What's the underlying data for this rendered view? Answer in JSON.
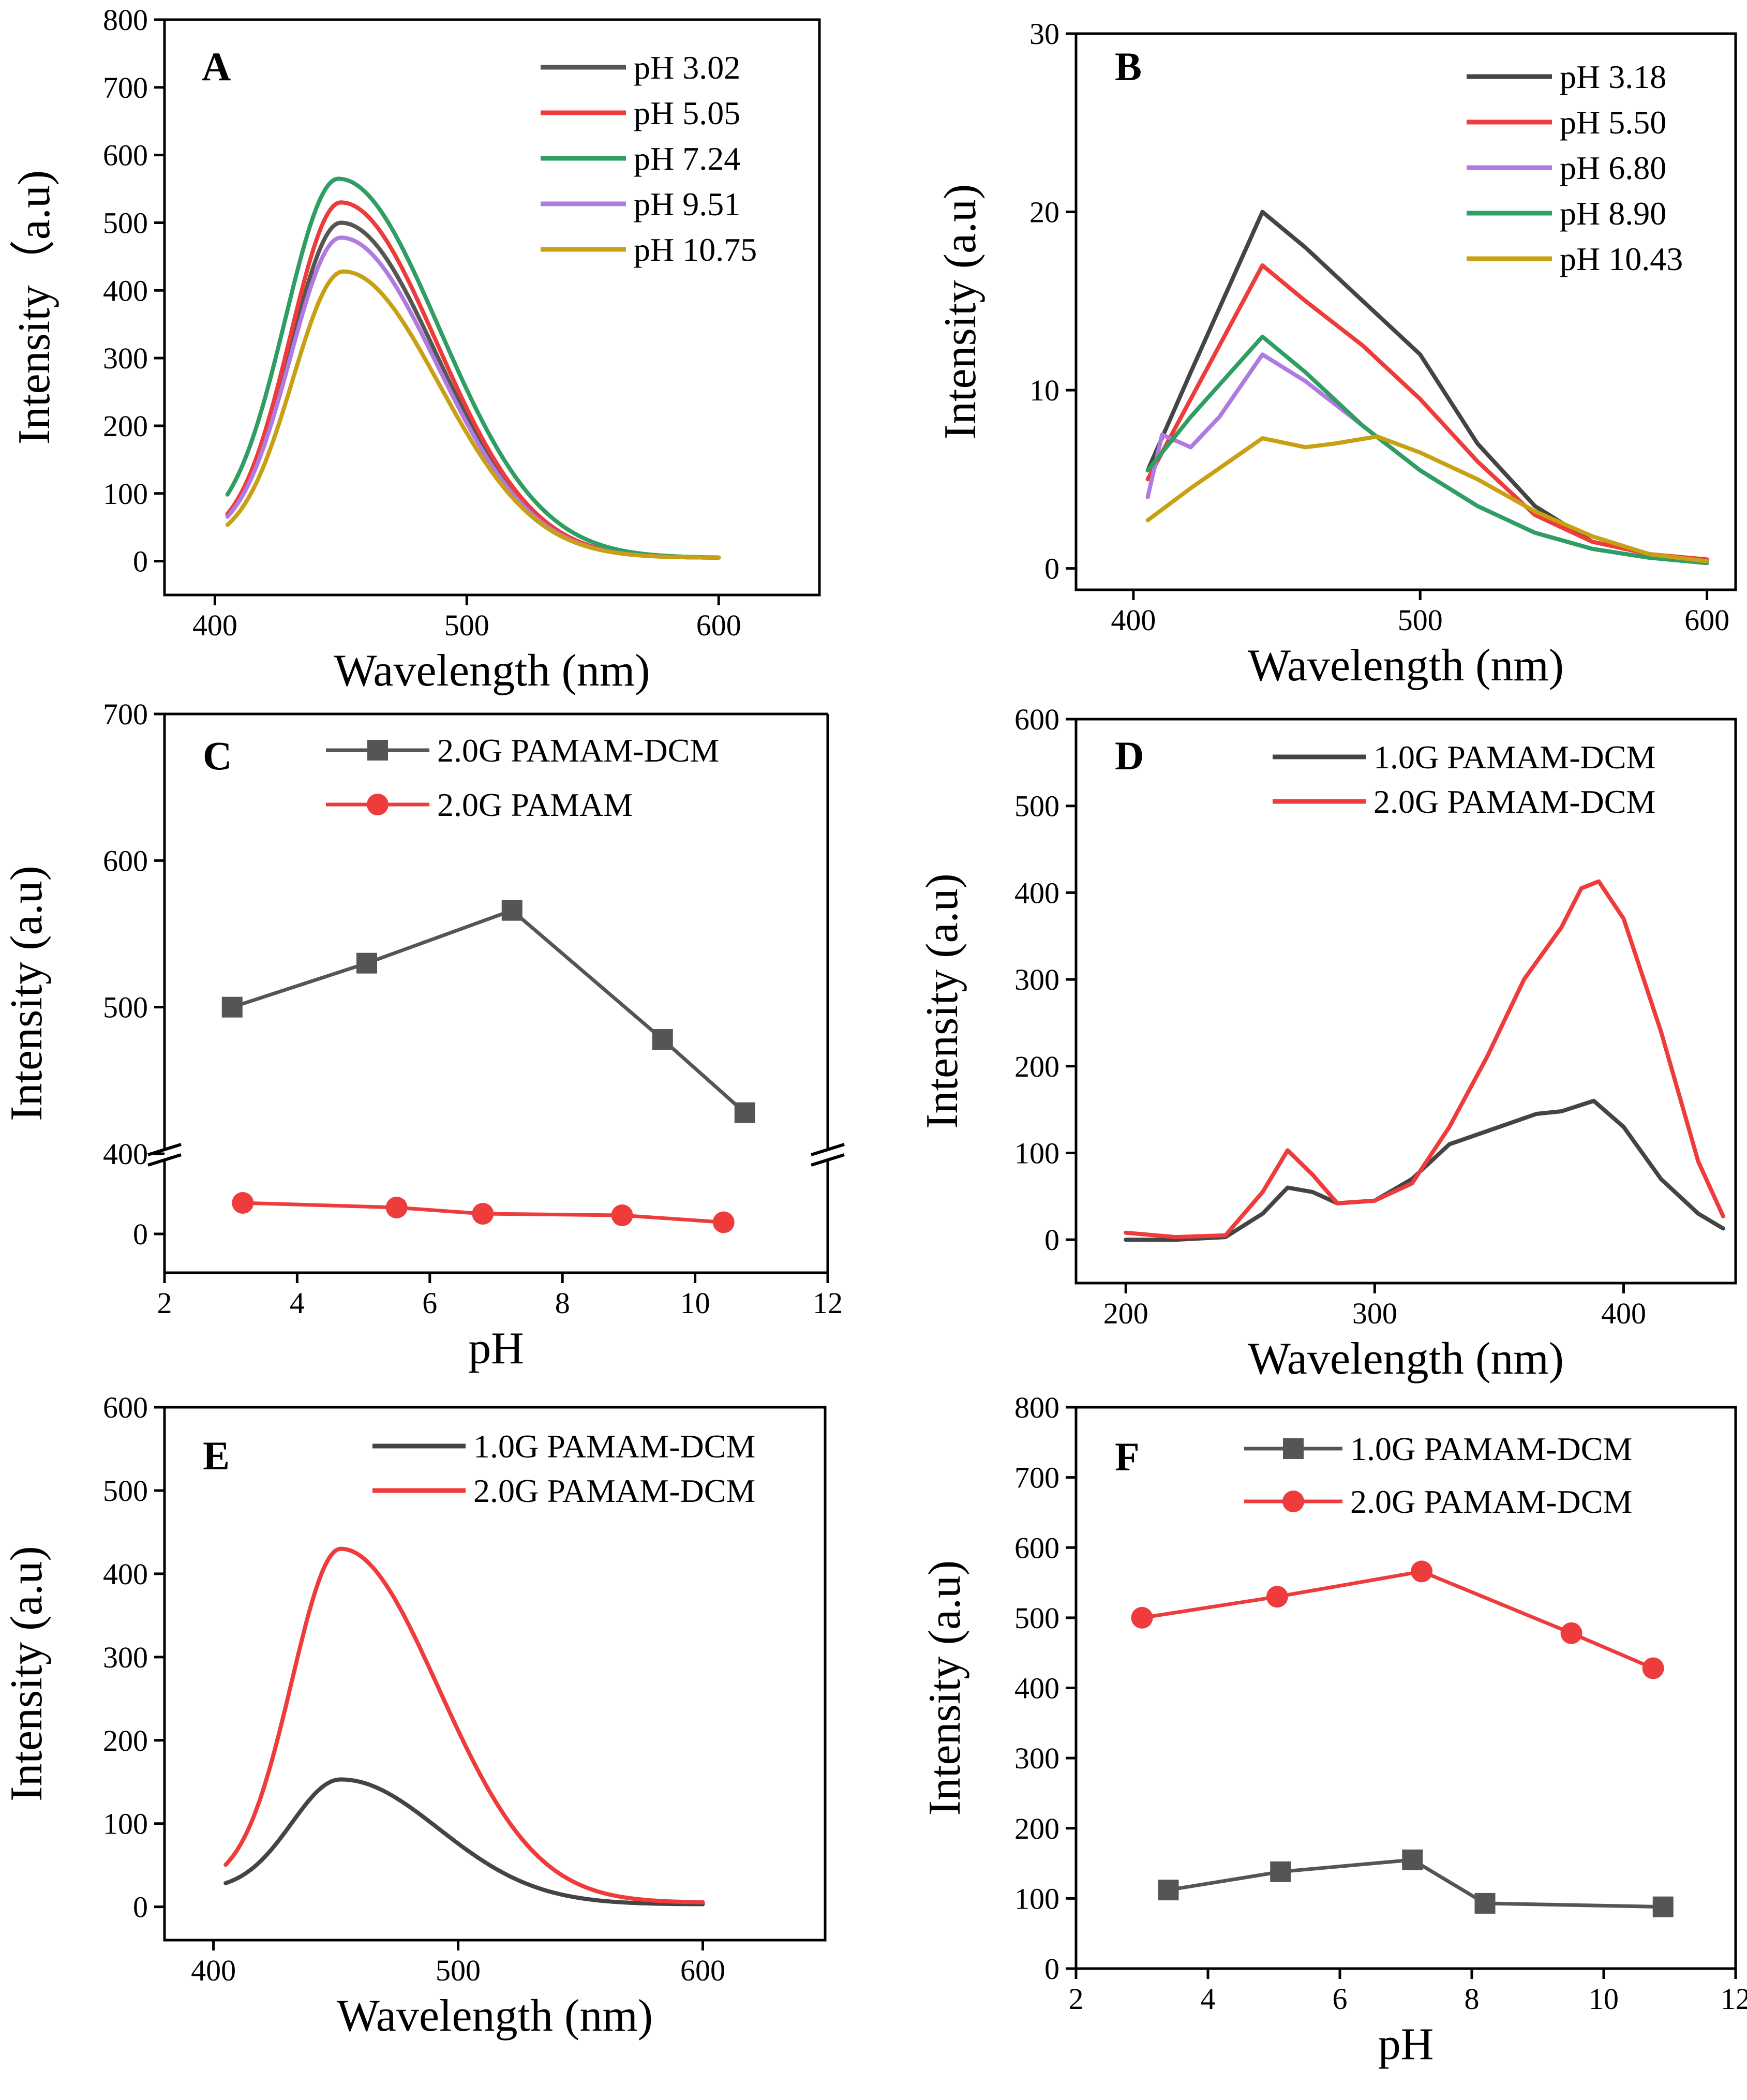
{
  "figure": {
    "panels": 6
  },
  "chart_data": [
    {
      "id": "A",
      "type": "line",
      "letter": "A",
      "xlabel": "Wavelength (nm)",
      "ylabel": "Intensity（a.u)",
      "xlim": [
        380,
        640
      ],
      "ylim": [
        -50,
        800
      ],
      "xticks": [
        400,
        500,
        600
      ],
      "yticks": [
        0,
        100,
        200,
        300,
        400,
        500,
        600,
        700,
        800
      ],
      "series": [
        {
          "name": "pH 3.02",
          "color": "#555555",
          "style": "peak",
          "x0": 405,
          "x1": 600,
          "peakX": 450,
          "peakY": 500,
          "startY": 30,
          "endY": 5,
          "wl": 20,
          "wr": 38
        },
        {
          "name": "pH 5.05",
          "color": "#ee3b3b",
          "style": "peak",
          "x0": 405,
          "x1": 600,
          "peakX": 450,
          "peakY": 530,
          "startY": 30,
          "endY": 5,
          "wl": 20,
          "wr": 38
        },
        {
          "name": "pH 7.24",
          "color": "#2e9e62",
          "style": "peak",
          "x0": 405,
          "x1": 600,
          "peakX": 449,
          "peakY": 565,
          "startY": 40,
          "endY": 5,
          "wl": 21,
          "wr": 40
        },
        {
          "name": "pH 9.51",
          "color": "#b07ae0",
          "style": "peak",
          "x0": 405,
          "x1": 600,
          "peakX": 450,
          "peakY": 478,
          "startY": 30,
          "endY": 5,
          "wl": 20,
          "wr": 38
        },
        {
          "name": "pH 10.75",
          "color": "#c9a014",
          "style": "peak",
          "x0": 405,
          "x1": 600,
          "peakX": 451,
          "peakY": 428,
          "startY": 25,
          "endY": 5,
          "wl": 20,
          "wr": 38
        }
      ]
    },
    {
      "id": "B",
      "type": "line",
      "letter": "B",
      "xlabel": "Wavelength (nm)",
      "ylabel": "Intensity (a.u)",
      "xlim": [
        380,
        610
      ],
      "ylim": [
        -1.2,
        30
      ],
      "xticks": [
        400,
        500,
        600
      ],
      "yticks": [
        0,
        10,
        20,
        30
      ],
      "series": [
        {
          "name": "pH 3.18",
          "color": "#444444",
          "style": "poly",
          "x": [
            405,
            420,
            445,
            460,
            480,
            500,
            520,
            540,
            560,
            580,
            600
          ],
          "y": [
            5.5,
            11,
            20,
            18,
            15,
            12,
            7,
            3.5,
            1.5,
            0.8,
            0.4
          ]
        },
        {
          "name": "pH 5.50",
          "color": "#ee3b3b",
          "style": "poly",
          "x": [
            405,
            420,
            445,
            460,
            480,
            500,
            520,
            540,
            560,
            580,
            600
          ],
          "y": [
            5,
            9.5,
            17,
            15,
            12.5,
            9.5,
            6,
            3,
            1.5,
            0.8,
            0.5
          ]
        },
        {
          "name": "pH 6.80",
          "color": "#b07ae0",
          "style": "poly",
          "x": [
            405,
            410,
            420,
            430,
            445,
            460,
            480,
            500,
            520,
            540,
            560,
            580,
            600
          ],
          "y": [
            4,
            7.5,
            6.8,
            8.5,
            12,
            10.5,
            8,
            5.5,
            3.5,
            2,
            1.1,
            0.6,
            0.3
          ]
        },
        {
          "name": "pH 8.90",
          "color": "#2e9e62",
          "style": "poly",
          "x": [
            405,
            420,
            445,
            460,
            480,
            500,
            520,
            540,
            560,
            580,
            600
          ],
          "y": [
            5.5,
            8.5,
            13,
            11,
            8,
            5.5,
            3.5,
            2,
            1.1,
            0.6,
            0.3
          ]
        },
        {
          "name": "pH 10.43",
          "color": "#c9a014",
          "style": "poly",
          "x": [
            405,
            420,
            445,
            460,
            470,
            485,
            500,
            520,
            540,
            560,
            580,
            600
          ],
          "y": [
            2.7,
            4.5,
            7.3,
            6.8,
            7,
            7.4,
            6.5,
            5,
            3.2,
            1.8,
            0.8,
            0.4
          ]
        }
      ]
    },
    {
      "id": "C",
      "type": "line",
      "letter": "C",
      "xlabel": "pH",
      "ylabel": "Intensity (a.u)",
      "xlim": [
        2,
        12
      ],
      "xticks": [
        2,
        4,
        6,
        8,
        10,
        12
      ],
      "ylim_upper": [
        400,
        700
      ],
      "yticks_upper": [
        400,
        500,
        600,
        700
      ],
      "ylim_lower": [
        -25,
        45
      ],
      "yticks_lower": [
        0
      ],
      "series": [
        {
          "name": "2.0G PAMAM-DCM",
          "color": "#555555",
          "marker": "square",
          "segment": "upper",
          "x": [
            3.02,
            5.05,
            7.24,
            9.51,
            10.75
          ],
          "y": [
            500,
            530,
            566,
            478,
            428
          ]
        },
        {
          "name": "2.0G PAMAM",
          "color": "#ee3b3b",
          "marker": "circle",
          "segment": "lower",
          "x": [
            3.18,
            5.5,
            6.8,
            8.9,
            10.43
          ],
          "y": [
            20,
            17,
            13,
            12,
            7.5
          ]
        }
      ]
    },
    {
      "id": "D",
      "type": "line",
      "letter": "D",
      "xlabel": "Wavelength (nm)",
      "ylabel": "Intensity (a.u)",
      "xlim": [
        180,
        445
      ],
      "ylim": [
        -50,
        600
      ],
      "xticks": [
        200,
        300,
        400
      ],
      "yticks": [
        0,
        100,
        200,
        300,
        400,
        500,
        600
      ],
      "series": [
        {
          "name": "1.0G PAMAM-DCM",
          "color": "#444444",
          "style": "poly",
          "x": [
            200,
            220,
            240,
            255,
            265,
            275,
            285,
            300,
            315,
            330,
            350,
            365,
            375,
            388,
            400,
            415,
            430,
            440
          ],
          "y": [
            0,
            0,
            3,
            30,
            60,
            55,
            42,
            45,
            70,
            110,
            130,
            145,
            148,
            160,
            130,
            70,
            30,
            13
          ]
        },
        {
          "name": "2.0G PAMAM-DCM",
          "color": "#ee3b3b",
          "style": "poly",
          "x": [
            200,
            220,
            240,
            255,
            265,
            275,
            285,
            300,
            315,
            330,
            345,
            360,
            375,
            383,
            390,
            400,
            415,
            430,
            440
          ],
          "y": [
            8,
            3,
            5,
            55,
            103,
            75,
            42,
            45,
            65,
            130,
            210,
            300,
            360,
            405,
            413,
            370,
            240,
            90,
            27
          ]
        }
      ]
    },
    {
      "id": "E",
      "type": "line",
      "letter": "E",
      "xlabel": "Wavelength (nm)",
      "ylabel": "Intensity (a.u)",
      "xlim": [
        380,
        650
      ],
      "ylim": [
        -40,
        600
      ],
      "xticks": [
        400,
        500,
        600
      ],
      "yticks": [
        0,
        100,
        200,
        300,
        400,
        500,
        600
      ],
      "series": [
        {
          "name": "1.0G PAMAM-DCM",
          "color": "#444444",
          "style": "peak",
          "x0": 405,
          "x1": 600,
          "peakX": 452,
          "peakY": 153,
          "startY": 20,
          "endY": 3,
          "wl": 20,
          "wr": 40
        },
        {
          "name": "2.0G PAMAM-DCM",
          "color": "#ee3b3b",
          "style": "peak",
          "x0": 405,
          "x1": 600,
          "peakX": 452,
          "peakY": 430,
          "startY": 25,
          "endY": 5,
          "wl": 20,
          "wr": 40
        }
      ]
    },
    {
      "id": "F",
      "type": "line",
      "letter": "F",
      "xlabel": "pH",
      "ylabel": "Intensity (a.u)",
      "xlim": [
        2,
        12
      ],
      "ylim": [
        0,
        800
      ],
      "xticks": [
        2,
        4,
        6,
        8,
        10,
        12
      ],
      "yticks": [
        0,
        100,
        200,
        300,
        400,
        500,
        600,
        700,
        800
      ],
      "series": [
        {
          "name": "1.0G PAMAM-DCM",
          "color": "#555555",
          "marker": "square",
          "x": [
            3.4,
            5.1,
            7.1,
            8.2,
            10.9
          ],
          "y": [
            112,
            138,
            155,
            93,
            88
          ]
        },
        {
          "name": "2.0G PAMAM-DCM",
          "color": "#ee3b3b",
          "marker": "circle",
          "x": [
            3.0,
            5.05,
            7.24,
            9.51,
            10.75
          ],
          "y": [
            500,
            530,
            566,
            478,
            428
          ]
        }
      ]
    }
  ]
}
